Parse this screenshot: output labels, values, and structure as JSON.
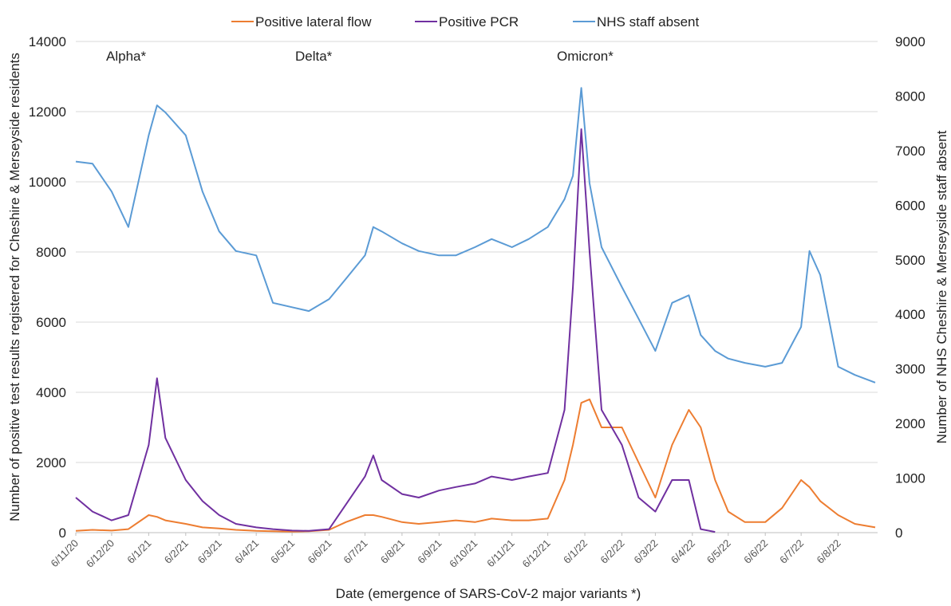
{
  "chart_data": {
    "type": "line",
    "annotations": [
      "Alpha*",
      "Delta*",
      "Omicron*"
    ],
    "xlabel": "Date (emergence of SARS-CoV-2 major variants *)",
    "ylabel": "Number of positive test results registered for Cheshire & Merseyside residents",
    "y2label": "Number of NHS Cheshire & Merseyside staff absent",
    "x": [
      "2020-11-06",
      "2020-11-20",
      "2020-12-06",
      "2020-12-20",
      "2021-01-06",
      "2021-01-13",
      "2021-01-20",
      "2021-02-06",
      "2021-02-20",
      "2021-03-06",
      "2021-03-20",
      "2021-04-06",
      "2021-04-20",
      "2021-05-06",
      "2021-05-20",
      "2021-06-06",
      "2021-06-20",
      "2021-07-06",
      "2021-07-13",
      "2021-07-20",
      "2021-08-06",
      "2021-08-20",
      "2021-09-06",
      "2021-09-20",
      "2021-10-06",
      "2021-10-20",
      "2021-11-06",
      "2021-11-20",
      "2021-12-06",
      "2021-12-20",
      "2021-12-27",
      "2022-01-03",
      "2022-01-10",
      "2022-01-20",
      "2022-02-06",
      "2022-02-20",
      "2022-03-06",
      "2022-03-20",
      "2022-04-03",
      "2022-04-13",
      "2022-04-25",
      "2022-05-06",
      "2022-05-20",
      "2022-06-06",
      "2022-06-20",
      "2022-07-06",
      "2022-07-13",
      "2022-07-22",
      "2022-08-06",
      "2022-08-20",
      "2022-09-06"
    ],
    "series": [
      {
        "name": "Positive lateral flow",
        "color": "#ed7d31",
        "values": [
          50,
          80,
          60,
          100,
          500,
          450,
          350,
          250,
          150,
          120,
          80,
          50,
          40,
          30,
          40,
          80,
          300,
          500,
          500,
          450,
          300,
          250,
          300,
          350,
          300,
          400,
          350,
          350,
          400,
          1500,
          2500,
          3700,
          3800,
          3000,
          3000,
          2000,
          1000,
          2500,
          3500,
          3000,
          1500,
          600,
          300,
          300,
          700,
          1500,
          1300,
          900,
          500,
          250,
          150
        ]
      },
      {
        "name": "Positive PCR",
        "color": "#7030a0",
        "values": [
          1000,
          600,
          350,
          500,
          2500,
          4400,
          2700,
          1500,
          900,
          500,
          250,
          150,
          100,
          60,
          50,
          100,
          800,
          1600,
          2200,
          1500,
          1100,
          1000,
          1200,
          1300,
          1400,
          1600,
          1500,
          1600,
          1700,
          3500,
          7000,
          11500,
          8000,
          3500,
          2500,
          1000,
          600,
          1500,
          1500,
          100,
          20,
          null,
          null,
          null,
          null,
          null,
          null,
          null,
          null,
          null,
          null
        ]
      },
      {
        "name": "NHS staff absent",
        "color": "#5b9bd5",
        "axis": "y2",
        "values": [
          6800,
          6760,
          6250,
          5600,
          7280,
          7830,
          7700,
          7280,
          6250,
          5520,
          5160,
          5080,
          4210,
          4130,
          4060,
          4280,
          4650,
          5080,
          5600,
          5520,
          5300,
          5160,
          5080,
          5080,
          5230,
          5380,
          5230,
          5380,
          5600,
          6110,
          6540,
          8150,
          6400,
          5230,
          4500,
          3920,
          3330,
          4210,
          4350,
          3620,
          3330,
          3190,
          3110,
          3040,
          3110,
          3770,
          5160,
          4720,
          3040,
          2890,
          2750
        ]
      }
    ],
    "xlim": [
      "2020-11-06",
      "2022-09-08"
    ],
    "xticks": [
      "6/11/20",
      "6/12/20",
      "6/1/21",
      "6/2/21",
      "6/3/21",
      "6/4/21",
      "6/5/21",
      "6/6/21",
      "6/7/21",
      "6/8/21",
      "6/9/21",
      "6/10/21",
      "6/11/21",
      "6/12/21",
      "6/1/22",
      "6/2/22",
      "6/3/22",
      "6/4/22",
      "6/5/22",
      "6/6/22",
      "6/7/22",
      "6/8/22"
    ],
    "ylim": [
      0,
      14000
    ],
    "yticks": [
      0,
      2000,
      4000,
      6000,
      8000,
      10000,
      12000,
      14000
    ],
    "y2lim": [
      0,
      9000
    ],
    "y2ticks": [
      0,
      1000,
      2000,
      3000,
      4000,
      5000,
      6000,
      7000,
      8000,
      9000
    ],
    "grid": true
  }
}
